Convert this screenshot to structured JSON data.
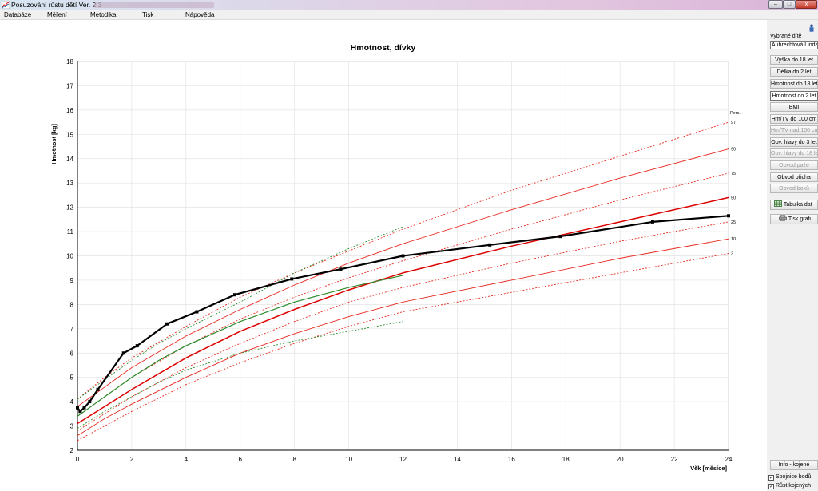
{
  "window": {
    "title": "Posuzování růstu dětí  Ver. 2.3",
    "buttons": {
      "minimize": "–",
      "maximize": "□",
      "close": "x"
    }
  },
  "menu": [
    "Databáze",
    "Měření",
    "Metodika",
    "Tisk",
    "Nápověda"
  ],
  "panel": {
    "selected_child_label": "Vybrané dítě",
    "selected_child_name": "Aubrechtová Linda",
    "buttons": [
      {
        "label": "Výška do 18 let",
        "state": "normal"
      },
      {
        "label": "Délka do 2 let",
        "state": "normal"
      },
      {
        "label": "Hmotnost do 18 let",
        "state": "normal"
      },
      {
        "label": "Hmotnost do 2 let",
        "state": "active"
      },
      {
        "label": "BMI",
        "state": "normal"
      },
      {
        "label": "Hm/TV do 100 cm",
        "state": "normal"
      },
      {
        "label": "Hm/TV nad 100 cm",
        "state": "disabled"
      },
      {
        "label": "Obv. hlavy do 3 let",
        "state": "normal"
      },
      {
        "label": "Obv. hlavy do 18 let",
        "state": "disabled"
      },
      {
        "label": "Obvod paže",
        "state": "disabled"
      },
      {
        "label": "Obvod břicha",
        "state": "normal"
      },
      {
        "label": "Obvod boků",
        "state": "disabled"
      }
    ],
    "table_button": "Tabulka dat",
    "print_button": "Tisk grafu",
    "info_button": "Info - kojené",
    "checkboxes": [
      {
        "label": "Spojnice bodů",
        "checked": true
      },
      {
        "label": "Růst kojených",
        "checked": true
      }
    ],
    "check_mark": "✓"
  },
  "colors": {
    "percentile": "#e8281e",
    "median": "#dd0000",
    "breastfed": "#2c8c2c",
    "child": "#000000",
    "grid": "#e3e3e3"
  },
  "chart_data": {
    "type": "line",
    "title": "Hmotnost, dívky",
    "xlabel": "Věk [měsíce]",
    "ylabel": "Hmotnost [kg]",
    "xlim": [
      0,
      24
    ],
    "ylim": [
      2,
      18
    ],
    "x_ticks": [
      0,
      2,
      4,
      6,
      8,
      10,
      12,
      14,
      16,
      18,
      20,
      22,
      24
    ],
    "y_ticks": [
      2,
      3,
      4,
      5,
      6,
      7,
      8,
      9,
      10,
      11,
      12,
      13,
      14,
      15,
      16,
      17,
      18
    ],
    "grid": true,
    "percentile_header": "Perc.",
    "percentiles": [
      {
        "label": "97",
        "style": "dashed",
        "x": [
          0,
          1,
          2,
          4,
          6,
          8,
          10,
          12,
          16,
          20,
          24
        ],
        "y": [
          4.1,
          5.0,
          5.8,
          7.1,
          8.3,
          9.3,
          10.2,
          11.1,
          12.7,
          14.1,
          15.5
        ]
      },
      {
        "label": "90",
        "style": "solid",
        "x": [
          0,
          1,
          2,
          4,
          6,
          8,
          10,
          12,
          16,
          20,
          24
        ],
        "y": [
          3.8,
          4.6,
          5.4,
          6.7,
          7.8,
          8.8,
          9.7,
          10.5,
          11.9,
          13.2,
          14.4
        ]
      },
      {
        "label": "75",
        "style": "dashed",
        "x": [
          0,
          1,
          2,
          4,
          6,
          8,
          10,
          12,
          16,
          20,
          24
        ],
        "y": [
          3.4,
          4.2,
          5.0,
          6.3,
          7.4,
          8.3,
          9.1,
          9.8,
          11.1,
          12.3,
          13.4
        ]
      },
      {
        "label": "50",
        "style": "solid-bold",
        "x": [
          0,
          1,
          2,
          4,
          6,
          8,
          10,
          12,
          16,
          20,
          24
        ],
        "y": [
          3.1,
          3.8,
          4.5,
          5.8,
          6.9,
          7.8,
          8.6,
          9.3,
          10.4,
          11.4,
          12.4
        ]
      },
      {
        "label": "25",
        "style": "dashed",
        "x": [
          0,
          1,
          2,
          4,
          6,
          8,
          10,
          12,
          16,
          20,
          24
        ],
        "y": [
          2.8,
          3.5,
          4.2,
          5.4,
          6.4,
          7.3,
          8.1,
          8.7,
          9.7,
          10.6,
          11.4
        ]
      },
      {
        "label": "10",
        "style": "solid",
        "x": [
          0,
          1,
          2,
          4,
          6,
          8,
          10,
          12,
          16,
          20,
          24
        ],
        "y": [
          2.6,
          3.3,
          3.9,
          5.0,
          6.0,
          6.8,
          7.5,
          8.1,
          9.0,
          9.9,
          10.7
        ]
      },
      {
        "label": "3",
        "style": "dashed",
        "x": [
          0,
          1,
          2,
          4,
          6,
          8,
          10,
          12,
          16,
          20,
          24
        ],
        "y": [
          2.4,
          3.0,
          3.6,
          4.7,
          5.6,
          6.4,
          7.1,
          7.7,
          8.5,
          9.3,
          10.1
        ]
      }
    ],
    "breastfed": [
      {
        "style": "dashed",
        "x": [
          0,
          1,
          2,
          3,
          4,
          6,
          8,
          10,
          12
        ],
        "y": [
          4.1,
          4.9,
          5.7,
          6.4,
          7.0,
          8.1,
          9.3,
          10.3,
          11.2
        ]
      },
      {
        "style": "solid",
        "x": [
          0,
          1,
          2,
          3,
          4,
          6,
          8,
          10,
          12
        ],
        "y": [
          3.4,
          4.2,
          5.0,
          5.7,
          6.3,
          7.3,
          8.1,
          8.7,
          9.2
        ]
      },
      {
        "style": "dashed",
        "x": [
          0,
          1,
          2,
          3,
          4,
          6,
          8,
          10,
          12
        ],
        "y": [
          2.9,
          3.6,
          4.2,
          4.8,
          5.3,
          6.0,
          6.5,
          6.9,
          7.3
        ]
      }
    ],
    "child_measurements": {
      "x": [
        0,
        0.1,
        0.25,
        0.45,
        0.75,
        1.7,
        2.2,
        3.3,
        4.4,
        5.8,
        7.9,
        9.7,
        12.0,
        15.2,
        17.8,
        21.2,
        24
      ],
      "y": [
        3.75,
        3.6,
        3.75,
        4.0,
        4.5,
        6.0,
        6.3,
        7.2,
        7.7,
        8.4,
        9.05,
        9.45,
        10.0,
        10.45,
        10.8,
        11.4,
        11.65
      ]
    }
  }
}
